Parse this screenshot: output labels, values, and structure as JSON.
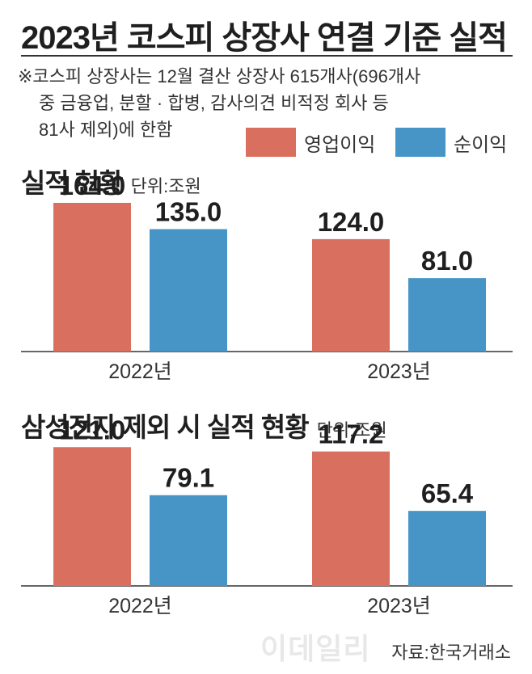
{
  "title": "2023년 코스피 상장사 연결 기준 실적",
  "note_lines": [
    "※코스피 상장사는 12월 결산 상장사 615개사(696개사",
    "중 금융업, 분할 · 합병, 감사의견 비적정 회사 등",
    "81사 제외)에 한함"
  ],
  "legend": [
    {
      "label": "영업이익",
      "color": "#d9705f"
    },
    {
      "label": "순이익",
      "color": "#4795c6"
    }
  ],
  "source": "자료:한국거래소",
  "watermark": "이데일리",
  "chart_data": [
    {
      "type": "bar",
      "title": "실적 현황",
      "unit": "단위:조원",
      "categories": [
        "2022년",
        "2023년"
      ],
      "series": [
        {
          "name": "영업이익",
          "values": [
            164.0,
            124.0
          ]
        },
        {
          "name": "순이익",
          "values": [
            135.0,
            81.0
          ]
        }
      ],
      "value_labels": [
        [
          "164.0",
          "124.0"
        ],
        [
          "135.0",
          "81.0"
        ]
      ],
      "ylim": [
        0,
        205
      ]
    },
    {
      "type": "bar",
      "title": "삼성전자 제외 시 실적 현황",
      "unit": "단위:조원",
      "categories": [
        "2022년",
        "2023년"
      ],
      "series": [
        {
          "name": "영업이익",
          "values": [
            121.0,
            117.2
          ]
        },
        {
          "name": "순이익",
          "values": [
            79.1,
            65.4
          ]
        }
      ],
      "value_labels": [
        [
          "121.0",
          "117.2"
        ],
        [
          "79.1",
          "65.4"
        ]
      ],
      "ylim": [
        0,
        155
      ]
    }
  ]
}
